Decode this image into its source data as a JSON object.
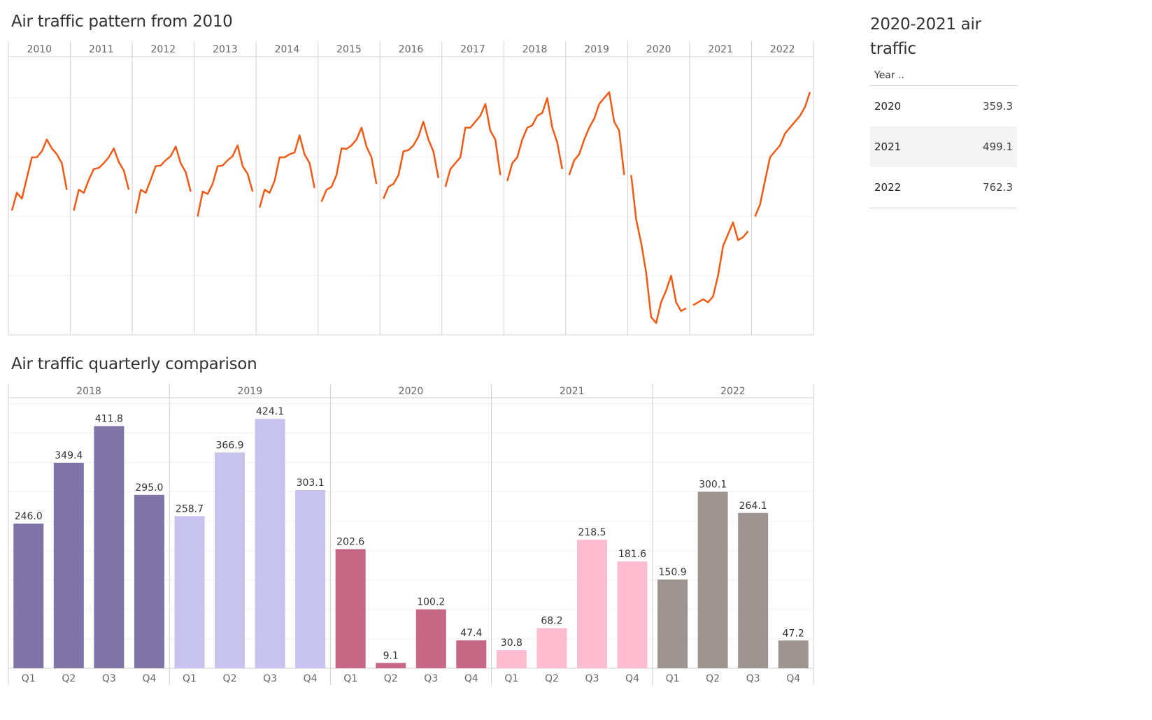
{
  "line_title": "Air traffic pattern from 2010",
  "bar_title": "Air traffic quarterly comparison",
  "side": {
    "title": "2020-2021 air traffic",
    "header": "Year ..",
    "rows": [
      {
        "year": "2020",
        "value": "359.3"
      },
      {
        "year": "2021",
        "value": "499.1"
      },
      {
        "year": "2022",
        "value": "762.3"
      }
    ]
  },
  "colors": {
    "line": "#f05a14",
    "bar_2018": "#8073a8",
    "bar_2019": "#c8c2ee",
    "bar_2020": "#c66786",
    "bar_2021": "#fdbcd0",
    "bar_2022": "#9d9390"
  },
  "chart_data": [
    {
      "type": "line",
      "title": "Air traffic pattern from 2010",
      "panels": [
        "2010",
        "2011",
        "2012",
        "2013",
        "2014",
        "2015",
        "2016",
        "2017",
        "2018",
        "2019",
        "2020",
        "2021",
        "2022"
      ],
      "x_note": "monthly points within each year panel",
      "ylim": [
        0,
        470
      ],
      "grid": true,
      "series": [
        {
          "values": [
            [
              210,
              240,
              230,
              265,
              300,
              300,
              310,
              330,
              315,
              305,
              290,
              245
            ],
            [
              210,
              245,
              240,
              262,
              280,
              282,
              290,
              300,
              315,
              292,
              278,
              245
            ],
            [
              205,
              245,
              240,
              262,
              285,
              286,
              295,
              302,
              318,
              290,
              275,
              242
            ],
            [
              200,
              242,
              238,
              255,
              285,
              286,
              295,
              302,
              320,
              285,
              272,
              242
            ],
            [
              215,
              245,
              240,
              260,
              300,
              300,
              305,
              308,
              337,
              305,
              290,
              248
            ],
            [
              225,
              245,
              250,
              270,
              315,
              314,
              320,
              330,
              350,
              318,
              300,
              255
            ],
            [
              230,
              250,
              255,
              270,
              310,
              312,
              320,
              335,
              360,
              330,
              310,
              265
            ],
            [
              250,
              280,
              290,
              300,
              350,
              350,
              360,
              370,
              390,
              345,
              330,
              270
            ],
            [
              260,
              290,
              300,
              330,
              350,
              354,
              370,
              375,
              400,
              350,
              325,
              280
            ],
            [
              270,
              295,
              305,
              330,
              350,
              365,
              390,
              400,
              410,
              360,
              345,
              270
            ]
          ],
          "values_2020_2022": [
            [
              270,
              195,
              155,
              105,
              30,
              20,
              55,
              75,
              100,
              55,
              40,
              45
            ],
            [
              50,
              55,
              60,
              55,
              65,
              100,
              150,
              170,
              190,
              160,
              165,
              175
            ],
            [
              200,
              220,
              260,
              300,
              310,
              320,
              340,
              350,
              360,
              370,
              385,
              410
            ]
          ]
        }
      ]
    },
    {
      "type": "bar",
      "title": "Air traffic quarterly comparison",
      "groups": [
        "2018",
        "2019",
        "2020",
        "2021",
        "2022"
      ],
      "categories": [
        "Q1",
        "Q2",
        "Q3",
        "Q4"
      ],
      "ylim": [
        0,
        460
      ],
      "grid": true,
      "series": [
        {
          "group": "2018",
          "values": [
            246.0,
            349.4,
            411.8,
            295.0
          ],
          "labels": [
            "246.0",
            "349.4",
            "411.8",
            "295.0"
          ]
        },
        {
          "group": "2019",
          "values": [
            258.7,
            366.9,
            424.1,
            303.1
          ],
          "labels": [
            "258.7",
            "366.9",
            "424.1",
            "303.1"
          ]
        },
        {
          "group": "2020",
          "values": [
            202.6,
            9.1,
            100.2,
            47.4
          ],
          "labels": [
            "202.6",
            "9.1",
            "100.2",
            "47.4"
          ]
        },
        {
          "group": "2021",
          "values": [
            30.8,
            68.2,
            218.5,
            181.6
          ],
          "labels": [
            "30.8",
            "68.2",
            "218.5",
            "181.6"
          ]
        },
        {
          "group": "2022",
          "values": [
            150.9,
            300.1,
            264.1,
            47.2
          ],
          "labels": [
            "150.9",
            "300.1",
            "264.1",
            "47.2"
          ]
        }
      ]
    }
  ]
}
